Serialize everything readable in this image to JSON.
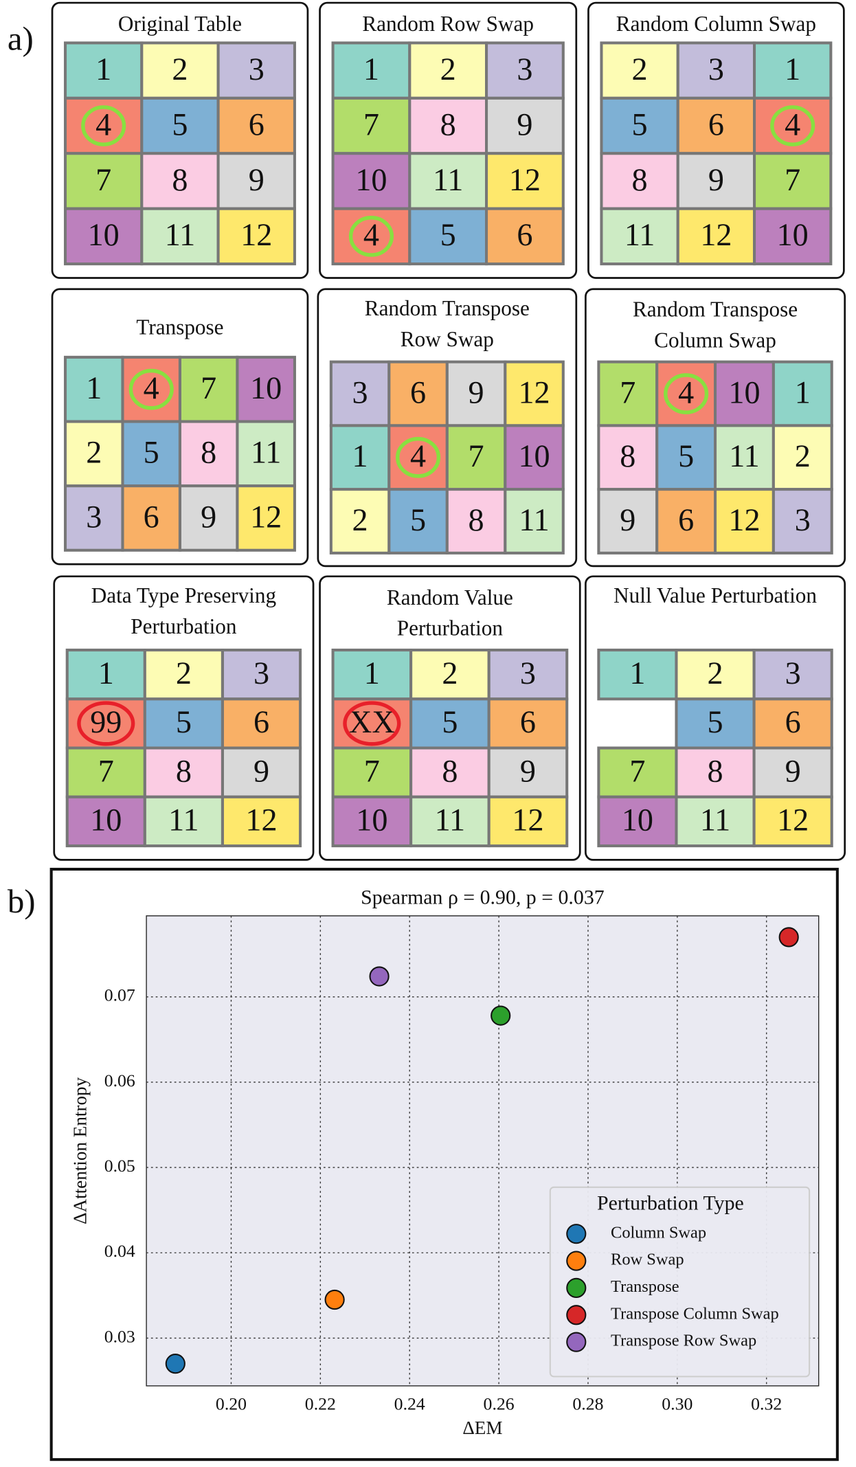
{
  "labels": [
    "a)",
    "b)"
  ],
  "panels": [
    {
      "title": [
        "Original Table"
      ],
      "cells": [
        [
          {
            "text": 1,
            "fill": "#8fd4c8"
          },
          {
            "text": 2,
            "fill": "#fdfcb4"
          },
          {
            "text": 3,
            "fill": "#c3bddb"
          }
        ],
        [
          {
            "text": 4,
            "fill": "#f58470",
            "ring": "#88e040"
          },
          {
            "text": 5,
            "fill": "#7eb0d4"
          },
          {
            "text": 6,
            "fill": "#f9b066"
          }
        ],
        [
          {
            "text": 7,
            "fill": "#b2dd6a"
          },
          {
            "text": 8,
            "fill": "#fbcce3"
          },
          {
            "text": 9,
            "fill": "#d9d9d9"
          }
        ],
        [
          {
            "text": 10,
            "fill": "#bc80bd"
          },
          {
            "text": 11,
            "fill": "#cdebc4"
          },
          {
            "text": 12,
            "fill": "#fee86c"
          }
        ]
      ]
    },
    {
      "title": [
        "Random Row Swap"
      ],
      "cells": [
        [
          {
            "text": 1,
            "fill": "#8fd4c8"
          },
          {
            "text": 2,
            "fill": "#fdfcb4"
          },
          {
            "text": 3,
            "fill": "#c3bddb"
          }
        ],
        [
          {
            "text": 7,
            "fill": "#b2dd6a"
          },
          {
            "text": 8,
            "fill": "#fbcce3"
          },
          {
            "text": 9,
            "fill": "#d9d9d9"
          }
        ],
        [
          {
            "text": 10,
            "fill": "#bc80bd"
          },
          {
            "text": 11,
            "fill": "#cdebc4"
          },
          {
            "text": 12,
            "fill": "#fee86c"
          }
        ],
        [
          {
            "text": 4,
            "fill": "#f58470",
            "ring": "#88e040"
          },
          {
            "text": 5,
            "fill": "#7eb0d4"
          },
          {
            "text": 6,
            "fill": "#f9b066"
          }
        ]
      ]
    },
    {
      "title": [
        "Random Column Swap"
      ],
      "cells": [
        [
          {
            "text": 2,
            "fill": "#fdfcb4"
          },
          {
            "text": 3,
            "fill": "#c3bddb"
          },
          {
            "text": 1,
            "fill": "#8fd4c8"
          }
        ],
        [
          {
            "text": 5,
            "fill": "#7eb0d4"
          },
          {
            "text": 6,
            "fill": "#f9b066"
          },
          {
            "text": 4,
            "fill": "#f58470",
            "ring": "#88e040"
          }
        ],
        [
          {
            "text": 8,
            "fill": "#fbcce3"
          },
          {
            "text": 9,
            "fill": "#d9d9d9"
          },
          {
            "text": 7,
            "fill": "#b2dd6a"
          }
        ],
        [
          {
            "text": 11,
            "fill": "#cdebc4"
          },
          {
            "text": 12,
            "fill": "#fee86c"
          },
          {
            "text": 10,
            "fill": "#bc80bd"
          }
        ]
      ]
    },
    {
      "title": [
        "Transpose"
      ],
      "cells": [
        [
          {
            "text": 1,
            "fill": "#8fd4c8"
          },
          {
            "text": 4,
            "fill": "#f58470",
            "ring": "#88e040"
          },
          {
            "text": 7,
            "fill": "#b2dd6a"
          },
          {
            "text": 10,
            "fill": "#bc80bd"
          }
        ],
        [
          {
            "text": 2,
            "fill": "#fdfcb4"
          },
          {
            "text": 5,
            "fill": "#7eb0d4"
          },
          {
            "text": 8,
            "fill": "#fbcce3"
          },
          {
            "text": 11,
            "fill": "#cdebc4"
          }
        ],
        [
          {
            "text": 3,
            "fill": "#c3bddb"
          },
          {
            "text": 6,
            "fill": "#f9b066"
          },
          {
            "text": 9,
            "fill": "#d9d9d9"
          },
          {
            "text": 12,
            "fill": "#fee86c"
          }
        ]
      ]
    },
    {
      "title": [
        "Random Transpose",
        "Row Swap"
      ],
      "cells": [
        [
          {
            "text": 3,
            "fill": "#c3bddb"
          },
          {
            "text": 6,
            "fill": "#f9b066"
          },
          {
            "text": 9,
            "fill": "#d9d9d9"
          },
          {
            "text": 12,
            "fill": "#fee86c"
          }
        ],
        [
          {
            "text": 1,
            "fill": "#8fd4c8"
          },
          {
            "text": 4,
            "fill": "#f58470",
            "ring": "#88e040"
          },
          {
            "text": 7,
            "fill": "#b2dd6a"
          },
          {
            "text": 10,
            "fill": "#bc80bd"
          }
        ],
        [
          {
            "text": 2,
            "fill": "#fdfcb4"
          },
          {
            "text": 5,
            "fill": "#7eb0d4"
          },
          {
            "text": 8,
            "fill": "#fbcce3"
          },
          {
            "text": 11,
            "fill": "#cdebc4"
          }
        ]
      ]
    },
    {
      "title": [
        "Random Transpose",
        "Column Swap"
      ],
      "cells": [
        [
          {
            "text": 7,
            "fill": "#b2dd6a"
          },
          {
            "text": 4,
            "fill": "#f58470",
            "ring": "#88e040"
          },
          {
            "text": 10,
            "fill": "#bc80bd"
          },
          {
            "text": 1,
            "fill": "#8fd4c8"
          }
        ],
        [
          {
            "text": 8,
            "fill": "#fbcce3"
          },
          {
            "text": 5,
            "fill": "#7eb0d4"
          },
          {
            "text": 11,
            "fill": "#cdebc4"
          },
          {
            "text": 2,
            "fill": "#fdfcb4"
          }
        ],
        [
          {
            "text": 9,
            "fill": "#d9d9d9"
          },
          {
            "text": 6,
            "fill": "#f9b066"
          },
          {
            "text": 12,
            "fill": "#fee86c"
          },
          {
            "text": 3,
            "fill": "#c3bddb"
          }
        ]
      ]
    },
    {
      "title": [
        "Data Type Preserving",
        "Perturbation"
      ],
      "cells": [
        [
          {
            "text": 1,
            "fill": "#8fd4c8"
          },
          {
            "text": 2,
            "fill": "#fdfcb4"
          },
          {
            "text": 3,
            "fill": "#c3bddb"
          }
        ],
        [
          {
            "text": 99,
            "fill": "#f58470",
            "ring": "#e8202a"
          },
          {
            "text": 5,
            "fill": "#7eb0d4"
          },
          {
            "text": 6,
            "fill": "#f9b066"
          }
        ],
        [
          {
            "text": 7,
            "fill": "#b2dd6a"
          },
          {
            "text": 8,
            "fill": "#fbcce3"
          },
          {
            "text": 9,
            "fill": "#d9d9d9"
          }
        ],
        [
          {
            "text": 10,
            "fill": "#bc80bd"
          },
          {
            "text": 11,
            "fill": "#cdebc4"
          },
          {
            "text": 12,
            "fill": "#fee86c"
          }
        ]
      ]
    },
    {
      "title": [
        "Random Value",
        "Perturbation"
      ],
      "cells": [
        [
          {
            "text": 1,
            "fill": "#8fd4c8"
          },
          {
            "text": 2,
            "fill": "#fdfcb4"
          },
          {
            "text": 3,
            "fill": "#c3bddb"
          }
        ],
        [
          {
            "text": "XX",
            "fill": "#f58470",
            "ring": "#e8202a"
          },
          {
            "text": 5,
            "fill": "#7eb0d4"
          },
          {
            "text": 6,
            "fill": "#f9b066"
          }
        ],
        [
          {
            "text": 7,
            "fill": "#b2dd6a"
          },
          {
            "text": 8,
            "fill": "#fbcce3"
          },
          {
            "text": 9,
            "fill": "#d9d9d9"
          }
        ],
        [
          {
            "text": 10,
            "fill": "#bc80bd"
          },
          {
            "text": 11,
            "fill": "#cdebc4"
          },
          {
            "text": 12,
            "fill": "#fee86c"
          }
        ]
      ]
    },
    {
      "title": [
        "Null Value Perturbation"
      ],
      "cells": [
        [
          {
            "text": 1,
            "fill": "#8fd4c8"
          },
          {
            "text": 2,
            "fill": "#fdfcb4"
          },
          {
            "text": 3,
            "fill": "#c3bddb"
          }
        ],
        [
          null,
          {
            "text": 5,
            "fill": "#7eb0d4"
          },
          {
            "text": 6,
            "fill": "#f9b066"
          }
        ],
        [
          {
            "text": 7,
            "fill": "#b2dd6a"
          },
          {
            "text": 8,
            "fill": "#fbcce3"
          },
          {
            "text": 9,
            "fill": "#d9d9d9"
          }
        ],
        [
          {
            "text": 10,
            "fill": "#bc80bd"
          },
          {
            "text": 11,
            "fill": "#cdebc4"
          },
          {
            "text": 12,
            "fill": "#fee86c"
          }
        ]
      ]
    }
  ],
  "chart_data": {
    "type": "scatter",
    "title": "Spearman ρ = 0.90, p = 0.037",
    "x_label": "ΔEM",
    "y_label": "ΔAttention Entropy",
    "xlim": [
      0.181,
      0.3317
    ],
    "ylim": [
      0.0244,
      0.0795
    ],
    "xticks": [
      {
        "value": 0.2,
        "label": "0.20"
      },
      0.22,
      0.24,
      0.26,
      0.28,
      {
        "value": 0.3,
        "label": "0.30"
      },
      0.32
    ],
    "yticks": [
      0.03,
      0.04,
      0.05,
      0.06,
      0.07
    ],
    "grid": true,
    "legend_title": "Perturbation Type",
    "legend_position": "lower right",
    "series": [
      {
        "name": "Column Swap",
        "color": "#1f77b4",
        "x": [
          0.1875
        ],
        "values": [
          0.027
        ]
      },
      {
        "name": "Row Swap",
        "color": "#ff7f0e",
        "x": [
          0.2232
        ],
        "values": [
          0.0345
        ]
      },
      {
        "name": "Transpose",
        "color": "#2ca02c",
        "x": [
          0.2604
        ],
        "values": [
          0.0678
        ]
      },
      {
        "name": "Transpose Column Swap",
        "color": "#d62728",
        "x": [
          0.325
        ],
        "values": [
          0.077
        ]
      },
      {
        "name": "Transpose Row Swap",
        "color": "#9467bd",
        "x": [
          0.2332
        ],
        "values": [
          0.0724
        ]
      }
    ]
  }
}
